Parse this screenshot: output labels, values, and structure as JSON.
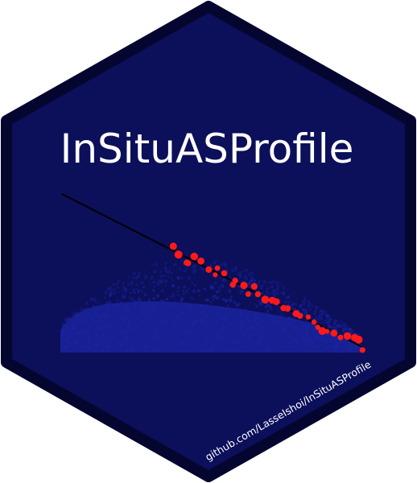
{
  "title": "InSituASProfile",
  "url": "github.com/LasseIshoi/InSituASProfile",
  "colors": {
    "hex_fill": "#0c0f5a",
    "hex_border": "#050630",
    "cloud": "#1a239e",
    "points": "#ff1a1a",
    "line": "#000000",
    "text": "#ffffff"
  }
}
